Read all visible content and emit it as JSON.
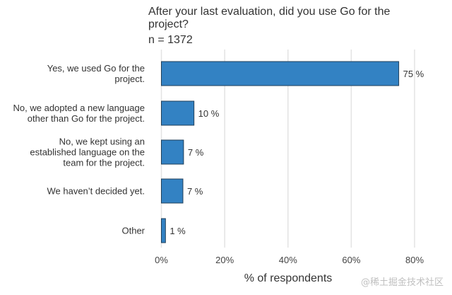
{
  "chart_data": {
    "type": "bar",
    "orientation": "horizontal",
    "title": "After your last evaluation, did you use Go for the project?",
    "subtitle": "n = 1372",
    "xlabel": "% of respondents",
    "ylabel": "",
    "xlim": [
      0,
      80
    ],
    "x_ticks": [
      "0%",
      "20%",
      "40%",
      "60%",
      "80%"
    ],
    "x_tick_values": [
      0,
      20,
      40,
      60,
      80
    ],
    "grid": "vertical",
    "bar_color": "#3382c3",
    "categories": [
      [
        "Yes, we used Go for the",
        "project."
      ],
      [
        "No, we adopted a new language",
        "other than Go for the project."
      ],
      [
        "No, we kept using an",
        "established language on the",
        "team for the project."
      ],
      [
        "We haven’t decided yet."
      ],
      [
        "Other"
      ]
    ],
    "values": [
      75,
      10,
      7,
      7,
      1
    ],
    "plot_values": [
      75,
      10.3,
      7,
      6.8,
      1.3
    ],
    "value_labels": [
      "75 %",
      "10 %",
      "7 %",
      "7 %",
      "1 %"
    ]
  },
  "watermark": "@稀土掘金技术社区"
}
